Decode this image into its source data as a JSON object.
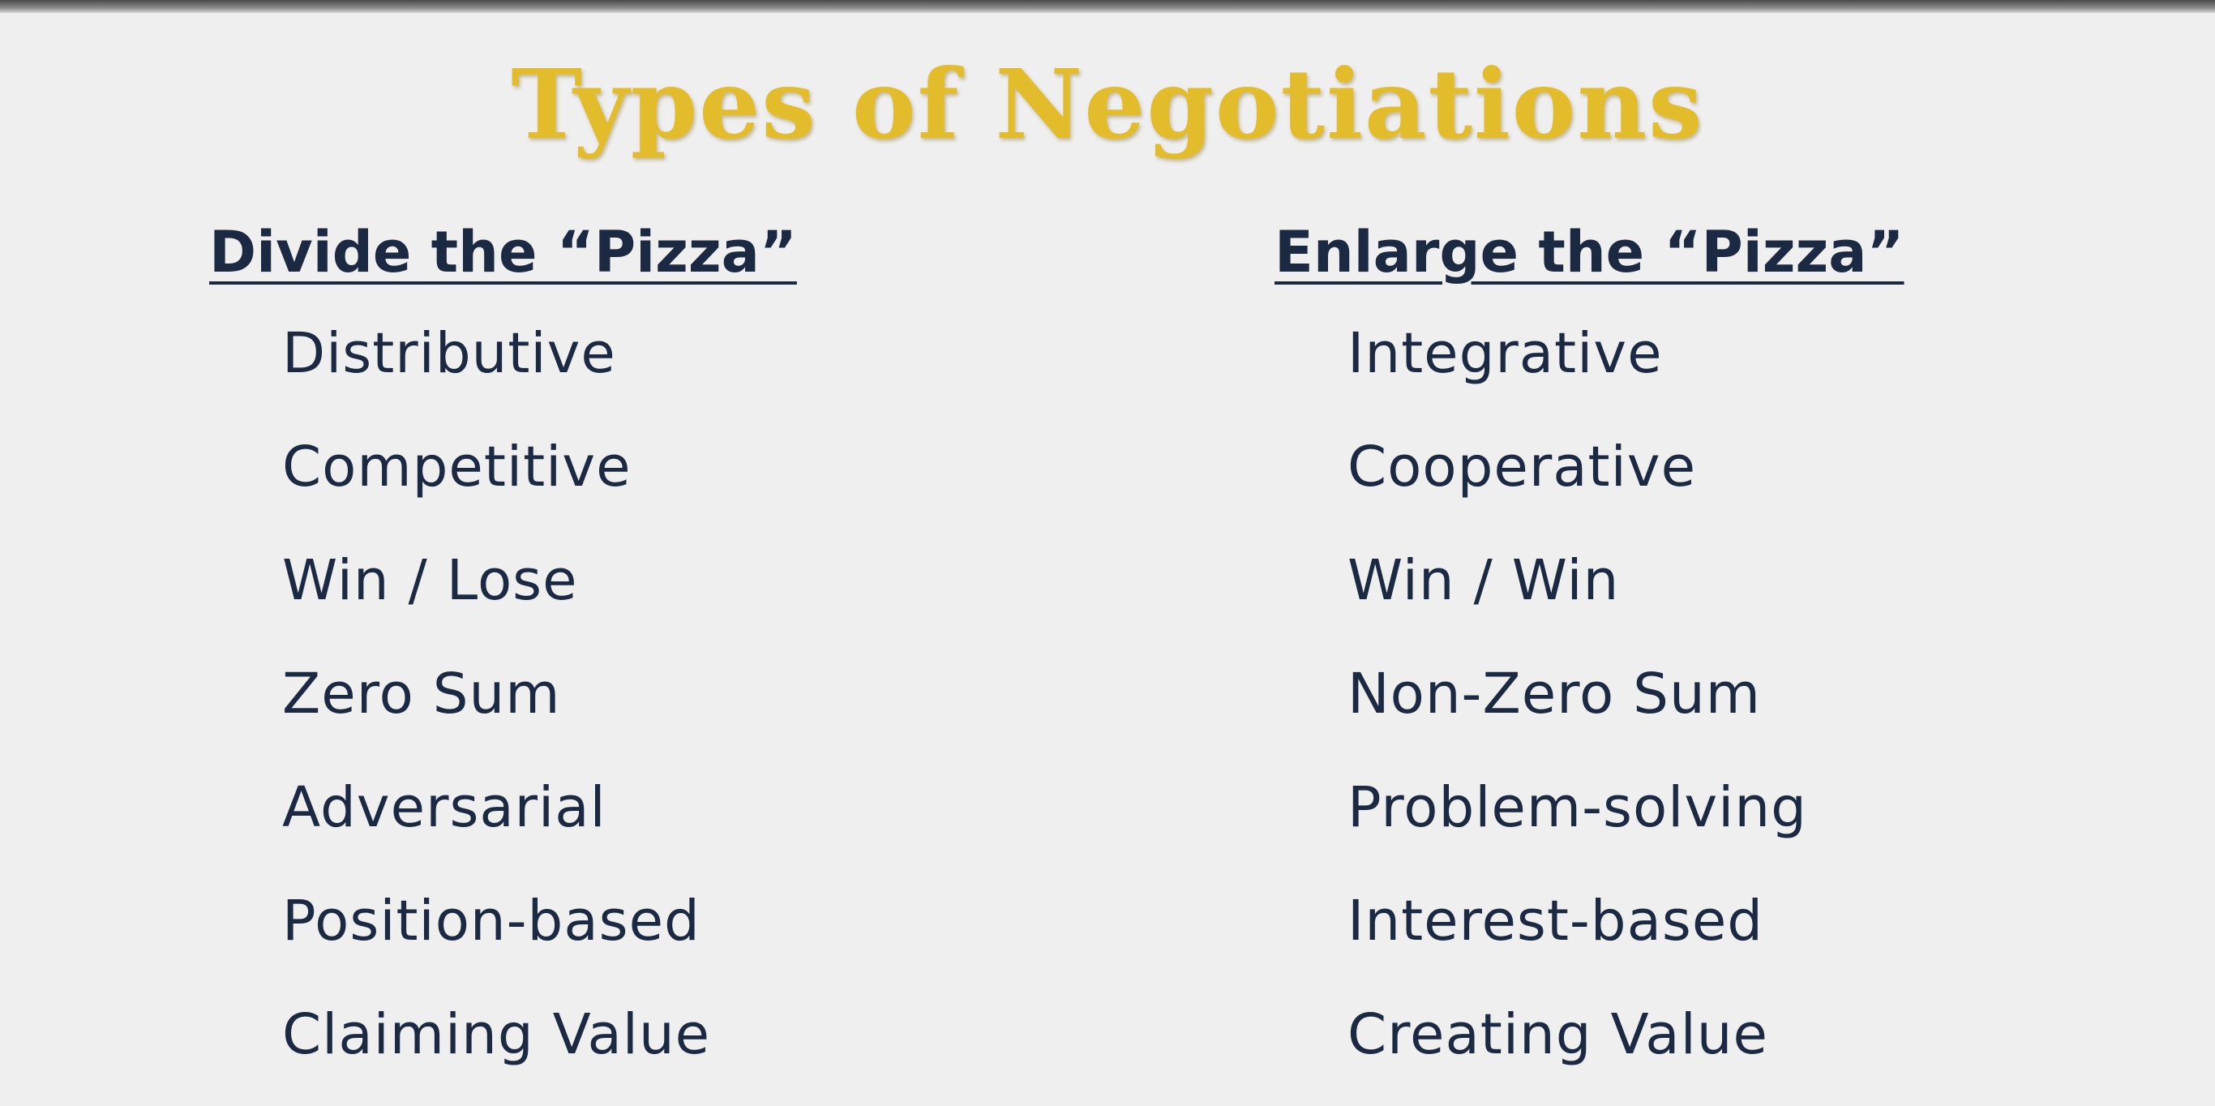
{
  "slide": {
    "title": "Types of Negotiations",
    "left_column": {
      "heading": "Divide the “Pizza”",
      "items": [
        "Distributive",
        "Competitive",
        "Win / Lose",
        "Zero Sum",
        "Adversarial",
        "Position-based",
        "Claiming Value"
      ]
    },
    "right_column": {
      "heading": "Enlarge the “Pizza”",
      "items": [
        "Integrative",
        "Cooperative",
        "Win / Win",
        "Non-Zero Sum",
        "Problem-solving",
        "Interest-based",
        "Creating Value"
      ]
    },
    "colors": {
      "title": "#e3bc2c",
      "text": "#1c2942",
      "background": "#efefef"
    }
  }
}
